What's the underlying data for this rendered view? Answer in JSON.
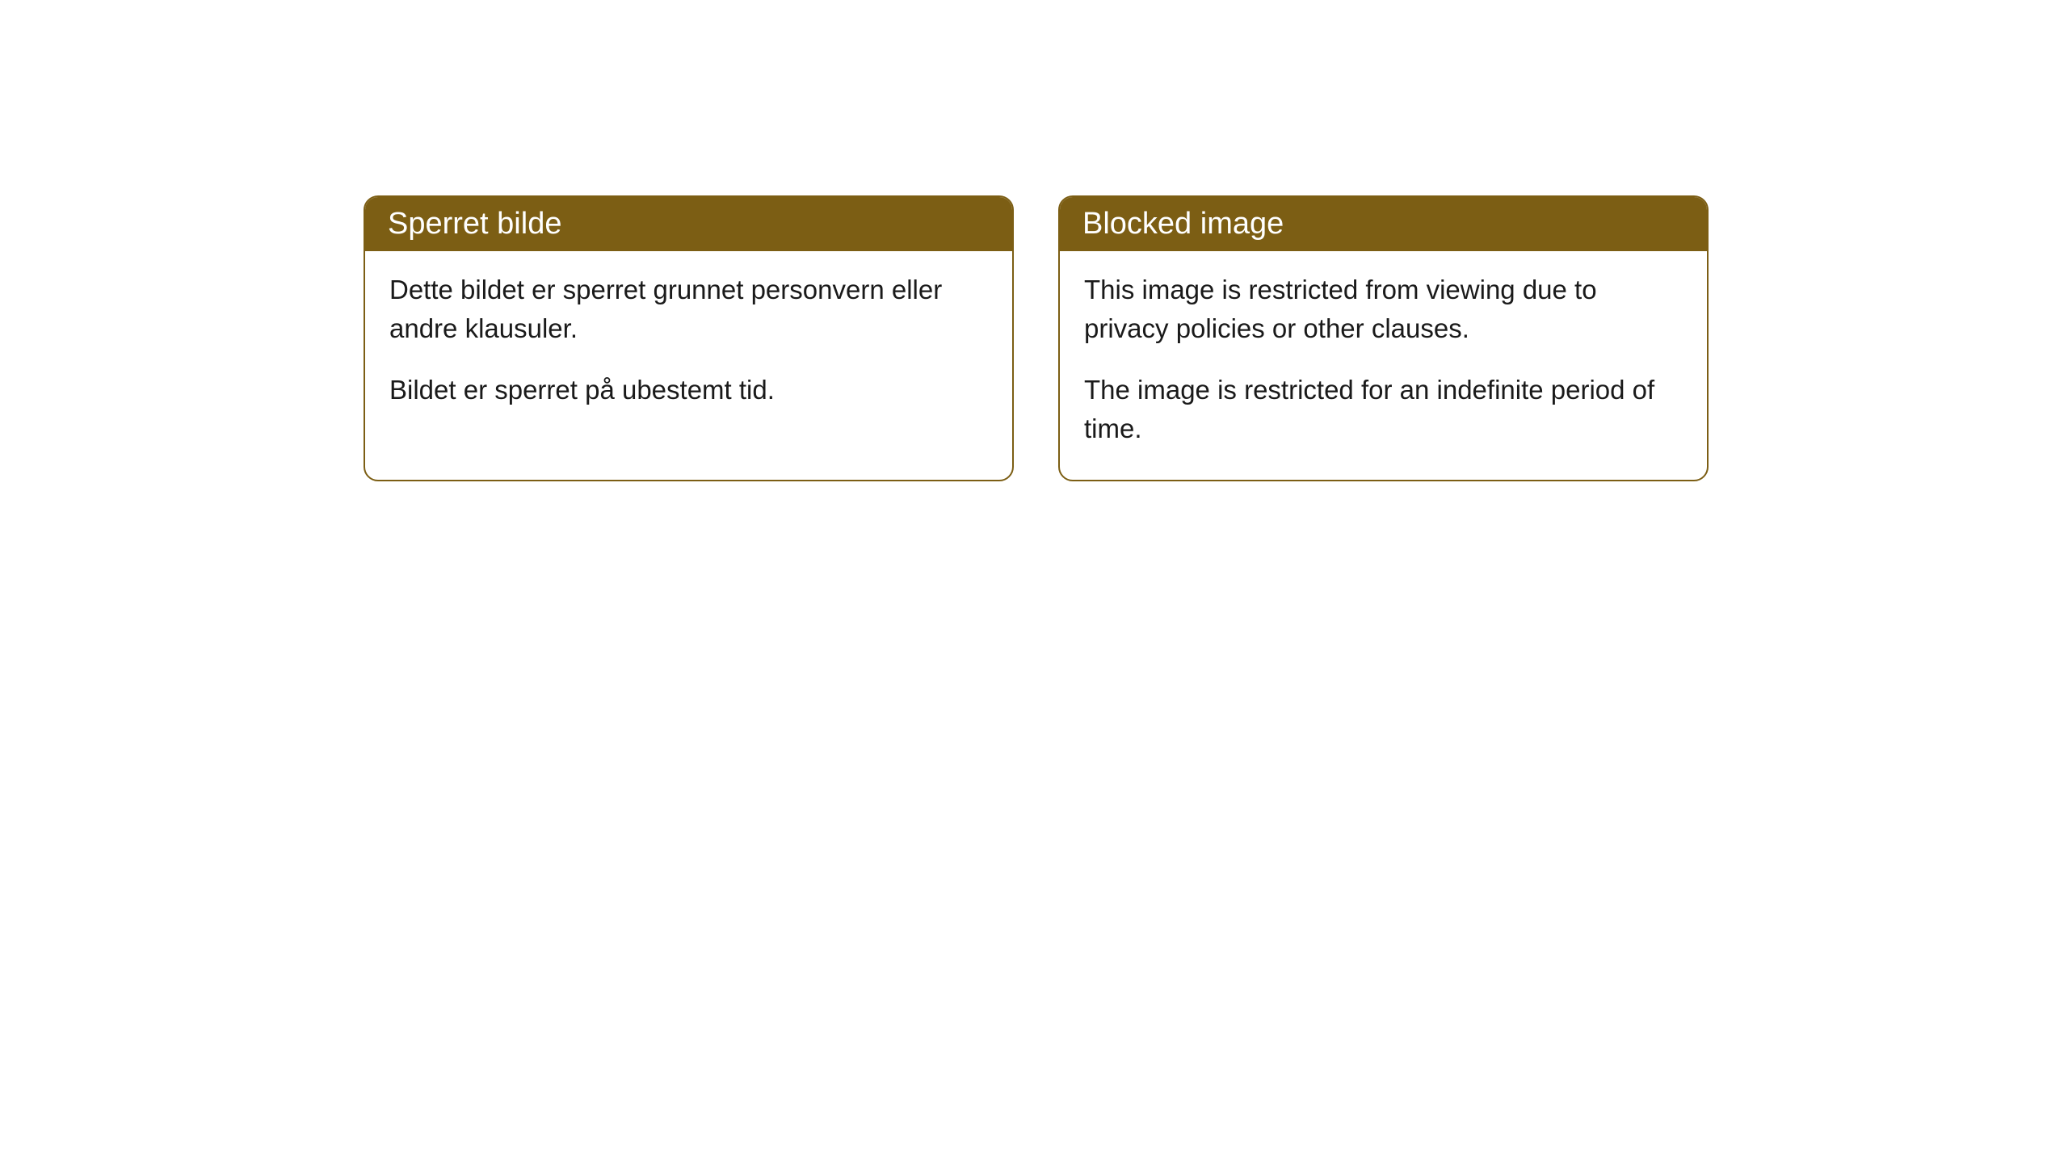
{
  "cards": [
    {
      "title": "Sperret bilde",
      "paragraph1": "Dette bildet er sperret grunnet personvern eller andre klausuler.",
      "paragraph2": "Bildet er sperret på ubestemt tid."
    },
    {
      "title": "Blocked image",
      "paragraph1": "This image is restricted from viewing due to privacy policies or other clauses.",
      "paragraph2": "The image is restricted for an indefinite period of time."
    }
  ],
  "style": {
    "header_bg_color": "#7c5e14",
    "header_text_color": "#ffffff",
    "border_color": "#7c5e14",
    "card_bg_color": "#ffffff",
    "body_text_color": "#1a1a1a",
    "border_radius": 18,
    "header_fontsize": 38,
    "body_fontsize": 33
  }
}
